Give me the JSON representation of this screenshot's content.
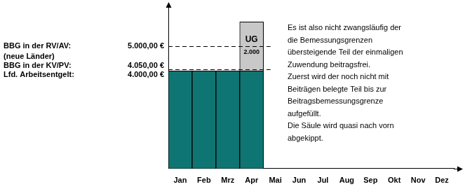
{
  "chart_data": {
    "type": "bar",
    "stacked": true,
    "categories": [
      "Jan",
      "Feb",
      "Mrz",
      "Apr",
      "Mai",
      "Jun",
      "Jul",
      "Aug",
      "Sep",
      "Okt",
      "Nov",
      "Dez"
    ],
    "series": [
      {
        "color": "#0e7573",
        "values": [
          4000,
          4000,
          4000,
          4000,
          null,
          null,
          null,
          null,
          null,
          null,
          null,
          null
        ]
      },
      {
        "name": "UG",
        "color": "#c8c8c8",
        "data_labels": true,
        "values": [
          null,
          null,
          null,
          2000,
          null,
          null,
          null,
          null,
          null,
          null,
          null,
          null
        ],
        "value_labels": [
          null,
          null,
          null,
          "2.000",
          null,
          null,
          null,
          null,
          null,
          null,
          null,
          null
        ]
      }
    ],
    "ylim": [
      0,
      6500
    ],
    "yticks": [
      {
        "value": 4000,
        "label": "4.000,00 €"
      },
      {
        "value": 4050,
        "label": "4.050,00 €"
      },
      {
        "value": 5000,
        "label": "5.000,00 €"
      }
    ],
    "grid": false,
    "annotations": [
      {
        "y": 5000,
        "text": [
          "BBG in der RV/AV:",
          "(neue Länder)"
        ],
        "line_style": "dashed"
      },
      {
        "y": 4050,
        "text": [
          "BBG in der KV/PV:"
        ],
        "line_style": "dashed"
      },
      {
        "y": 4000,
        "text": [
          "Lfd. Arbeitsentgelt:"
        ]
      }
    ],
    "note": [
      "Es ist also nicht zwangsläufig der",
      "die Bemessungsgrenzen",
      "übersteigende Teil der einmaligen",
      "Zuwendung beitragsfrei.",
      "Zuerst wird der noch nicht mit",
      "Beiträgen belegte Teil bis zur",
      "Beitragsbemessungsgrenze",
      "aufgefüllt.",
      "Die Säule wird quasi nach vorn",
      "abgekippt."
    ]
  }
}
